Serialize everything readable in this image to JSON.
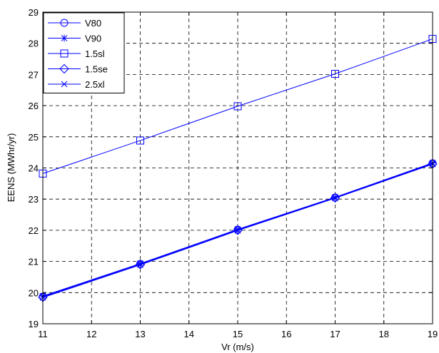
{
  "chart_data": {
    "type": "line",
    "xlabel": "Vr (m/s)",
    "ylabel": "EENS (MWhr/yr)",
    "xlim": [
      11,
      19
    ],
    "ylim": [
      19,
      29
    ],
    "xticks": [
      "11",
      "12",
      "13",
      "14",
      "15",
      "16",
      "17",
      "18",
      "19"
    ],
    "yticks": [
      "19",
      "20",
      "21",
      "22",
      "23",
      "24",
      "25",
      "26",
      "27",
      "28",
      "29"
    ],
    "grid": true,
    "legend_position": "top-left",
    "line_color": "#0000ff",
    "x": [
      11,
      13,
      15,
      17,
      19
    ],
    "series": [
      {
        "name": "V80",
        "marker": "circle",
        "values": [
          19.87,
          20.92,
          22.02,
          23.05,
          24.15
        ]
      },
      {
        "name": "V90",
        "marker": "asterisk",
        "values": [
          19.89,
          20.93,
          22.03,
          23.06,
          24.16
        ]
      },
      {
        "name": "1.5sl",
        "marker": "square",
        "values": [
          23.82,
          24.88,
          25.98,
          27.02,
          28.14
        ]
      },
      {
        "name": "1.5se",
        "marker": "diamond",
        "values": [
          19.85,
          20.9,
          22.0,
          23.04,
          24.13
        ]
      },
      {
        "name": "2.5xl",
        "marker": "x",
        "values": [
          19.84,
          20.89,
          21.99,
          23.03,
          24.12
        ]
      }
    ]
  }
}
